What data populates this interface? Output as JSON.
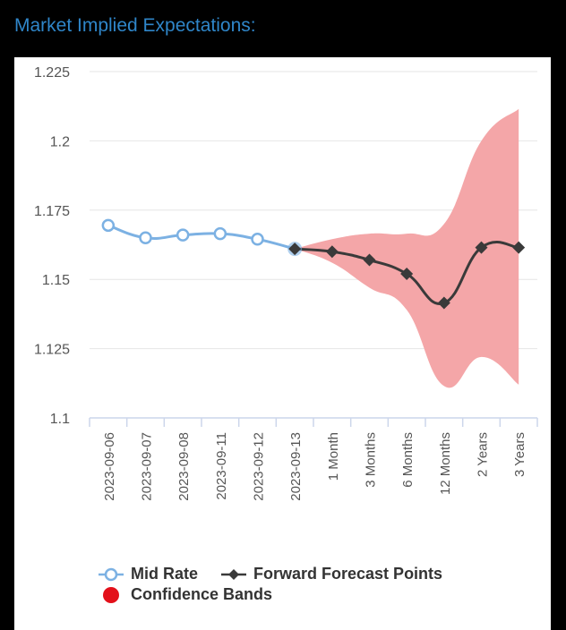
{
  "header": {
    "title": "Market Implied Expectations:"
  },
  "chart_data": {
    "type": "line",
    "title": "Market Implied Expectations:",
    "xlabel": "",
    "ylabel": "",
    "ylim": [
      1.1,
      1.225
    ],
    "yticks": [
      1.1,
      1.125,
      1.15,
      1.175,
      1.2,
      1.225
    ],
    "ytick_labels": [
      "1.1",
      "1.125",
      "1.15",
      "1.175",
      "1.2",
      "1.225"
    ],
    "grid": true,
    "categories": [
      "2023-09-06",
      "2023-09-07",
      "2023-09-08",
      "2023-09-11",
      "2023-09-12",
      "2023-09-13",
      "1 Month",
      "3 Months",
      "6 Months",
      "12 Months",
      "2 Years",
      "3 Years"
    ],
    "series": [
      {
        "name": "Mid Rate",
        "color": "#7cb1e3",
        "marker": "circle-hollow",
        "values": [
          1.1695,
          1.165,
          1.166,
          1.1665,
          1.1645,
          1.161,
          null,
          null,
          null,
          null,
          null,
          null
        ]
      },
      {
        "name": "Forward Forecast Points",
        "color": "#3a3a3a",
        "marker": "diamond",
        "values": [
          null,
          null,
          null,
          null,
          null,
          1.161,
          1.16,
          1.157,
          1.152,
          1.1415,
          1.1615,
          1.1615
        ]
      },
      {
        "name": "Confidence Bands",
        "color": "#f4a6a8",
        "type": "area-range",
        "upper": [
          null,
          null,
          null,
          null,
          null,
          1.161,
          1.1645,
          1.1665,
          1.1665,
          1.17,
          1.2,
          1.2115
        ],
        "lower": [
          null,
          null,
          null,
          null,
          null,
          1.161,
          1.156,
          1.147,
          1.139,
          1.1115,
          1.122,
          1.112
        ]
      }
    ],
    "legend": {
      "position": "bottom",
      "items": [
        {
          "label": "Mid Rate",
          "symbol": "circle-hollow-line",
          "color": "#7cb1e3"
        },
        {
          "label": "Forward Forecast Points",
          "symbol": "diamond-line",
          "color": "#3a3a3a"
        },
        {
          "label": "Confidence Bands",
          "symbol": "filled-circle",
          "color": "#e3101a"
        }
      ]
    }
  }
}
